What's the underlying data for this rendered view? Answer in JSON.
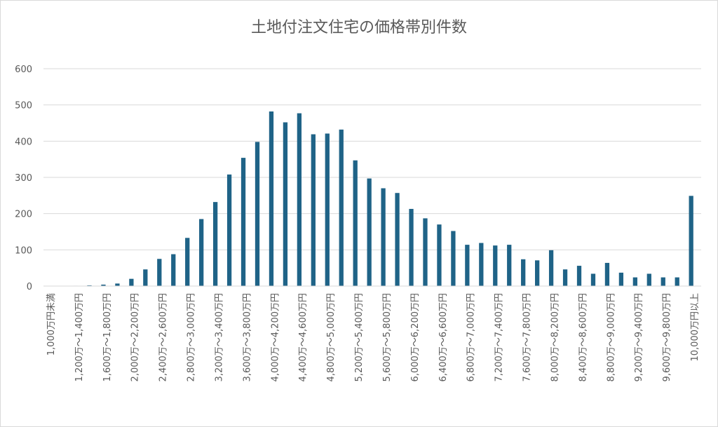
{
  "chart_data": {
    "type": "bar",
    "title": "土地付注文住宅の価格帯別件数",
    "color": "#1f6387",
    "grid": true,
    "ylim": [
      0,
      600
    ],
    "yticks": [
      0,
      100,
      200,
      300,
      400,
      500,
      600
    ],
    "categories": [
      "1,000万円未満",
      null,
      "1,200万～1,400万円",
      null,
      "1,600万～1,800万円",
      null,
      "2,000万～2,200万円",
      null,
      "2,400万～2,600万円",
      null,
      "2,800万～3,000万円",
      null,
      "3,200万～3,400万円",
      null,
      "3,600万～3,800万円",
      null,
      "4,000万～4,200万円",
      null,
      "4,400万～4,600万円",
      null,
      "4,800万～5,000万円",
      null,
      "5,200万～5,400万円",
      null,
      "5,600万～5,800万円",
      null,
      "6,000万～6,200万円",
      null,
      "6,400万～6,600万円",
      null,
      "6,800万～7,000万円",
      null,
      "7,200万～7,400万円",
      null,
      "7,600万～7,800万円",
      null,
      "8,000万～8,200万円",
      null,
      "8,400万～8,600万円",
      null,
      "8,800万～9,000万円",
      null,
      "9,200万～9,400万円",
      null,
      "9,600万～9,800万円",
      null,
      "10,000万円以上"
    ],
    "values": [
      0,
      0,
      1,
      2,
      4,
      7,
      20,
      46,
      75,
      88,
      133,
      185,
      232,
      308,
      354,
      398,
      482,
      452,
      477,
      419,
      421,
      432,
      347,
      297,
      270,
      257,
      213,
      187,
      170,
      152,
      114,
      119,
      112,
      114,
      74,
      71,
      99,
      46,
      56,
      34,
      64,
      37,
      24,
      34,
      24,
      24,
      249
    ]
  }
}
